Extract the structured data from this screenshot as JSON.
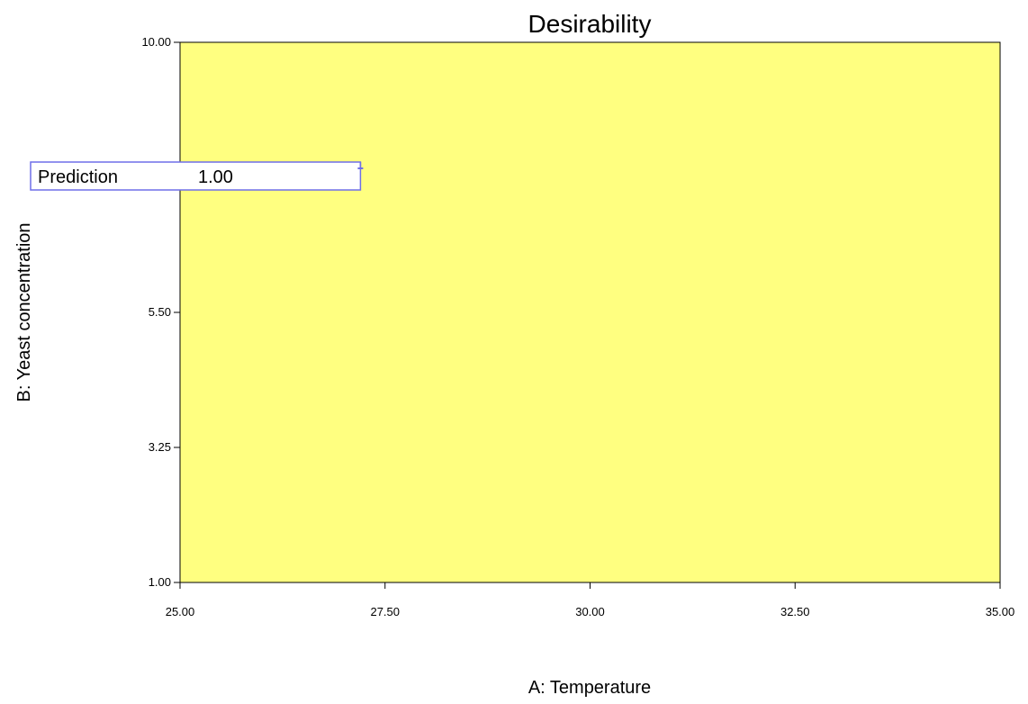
{
  "chart_data": {
    "type": "heatmap",
    "title": "Desirability",
    "xlabel": "A: Temperature",
    "ylabel": "B: Yeast concentration",
    "xlim": [
      25.0,
      35.0
    ],
    "ylim": [
      1.0,
      10.0
    ],
    "x_ticks": [
      "25.00",
      "27.50",
      "30.00",
      "32.50",
      "35.00"
    ],
    "x_tick_values": [
      25.0,
      27.5,
      30.0,
      32.5,
      35.0
    ],
    "y_ticks": [
      "10.00",
      "5.50",
      "3.25",
      "1.00"
    ],
    "y_tick_values": [
      10.0,
      5.5,
      3.25,
      1.0
    ],
    "fill_color": "#ffff80",
    "grid": false,
    "prediction": {
      "label": "Prediction",
      "value": "1.00",
      "x": 27.2,
      "y": 7.9
    },
    "flag_color": "#6f6fe8"
  }
}
